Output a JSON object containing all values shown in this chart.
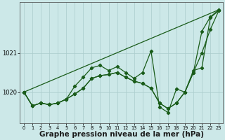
{
  "bg_color": "#cce8e8",
  "grid_color": "#aacccc",
  "line_color": "#1a5c1a",
  "xlabel": "Graphe pression niveau de la mer (hPa)",
  "xlabel_fontsize": 7.5,
  "xlim": [
    -0.5,
    23.5
  ],
  "ylim": [
    1019.2,
    1022.3
  ],
  "yticks": [
    1020,
    1021
  ],
  "xticks": [
    0,
    1,
    2,
    3,
    4,
    5,
    6,
    7,
    8,
    9,
    10,
    11,
    12,
    13,
    14,
    15,
    16,
    17,
    18,
    19,
    20,
    21,
    22,
    23
  ],
  "series1_x": [
    0,
    23
  ],
  "series1_y": [
    1020.0,
    1022.1
  ],
  "series2_x": [
    0,
    1,
    2,
    3,
    4,
    5,
    6,
    7,
    8,
    9,
    10,
    11,
    12,
    13,
    14,
    15,
    16,
    17,
    18,
    19,
    20,
    21,
    22,
    23
  ],
  "series2_y": [
    1020.0,
    1019.65,
    1019.72,
    1019.68,
    1019.72,
    1019.82,
    1019.95,
    1020.1,
    1020.35,
    1020.42,
    1020.45,
    1020.5,
    1020.38,
    1020.28,
    1020.22,
    1020.1,
    1019.72,
    1019.58,
    1019.72,
    1020.0,
    1020.5,
    1021.0,
    1021.6,
    1022.08
  ],
  "series3_x": [
    0,
    1,
    2,
    3,
    4,
    5,
    6,
    7,
    8,
    9,
    10,
    11,
    12,
    13,
    14,
    15,
    16,
    17,
    18,
    19,
    20,
    21,
    22,
    23
  ],
  "series3_y": [
    1020.0,
    1019.65,
    1019.72,
    1019.68,
    1019.72,
    1019.82,
    1020.15,
    1020.38,
    1020.62,
    1020.68,
    1020.55,
    1020.65,
    1020.5,
    1020.35,
    1020.5,
    1021.05,
    1019.62,
    1019.48,
    1020.08,
    1020.0,
    1020.55,
    1020.62,
    1021.9,
    1022.08
  ],
  "series4_x": [
    0,
    1,
    2,
    3,
    4,
    5,
    6,
    7,
    8,
    9,
    10,
    11,
    12,
    13,
    14,
    15,
    16,
    17,
    18,
    19,
    20,
    21,
    22,
    23
  ],
  "series4_y": [
    1020.0,
    1019.65,
    1019.72,
    1019.68,
    1019.72,
    1019.82,
    1019.95,
    1020.1,
    1020.35,
    1020.42,
    1020.45,
    1020.5,
    1020.38,
    1020.28,
    1020.22,
    1020.1,
    1019.72,
    1019.58,
    1019.72,
    1020.0,
    1020.5,
    1021.55,
    1021.92,
    1022.1
  ],
  "marker": "D",
  "markersize": 2.2,
  "linewidth": 0.9
}
